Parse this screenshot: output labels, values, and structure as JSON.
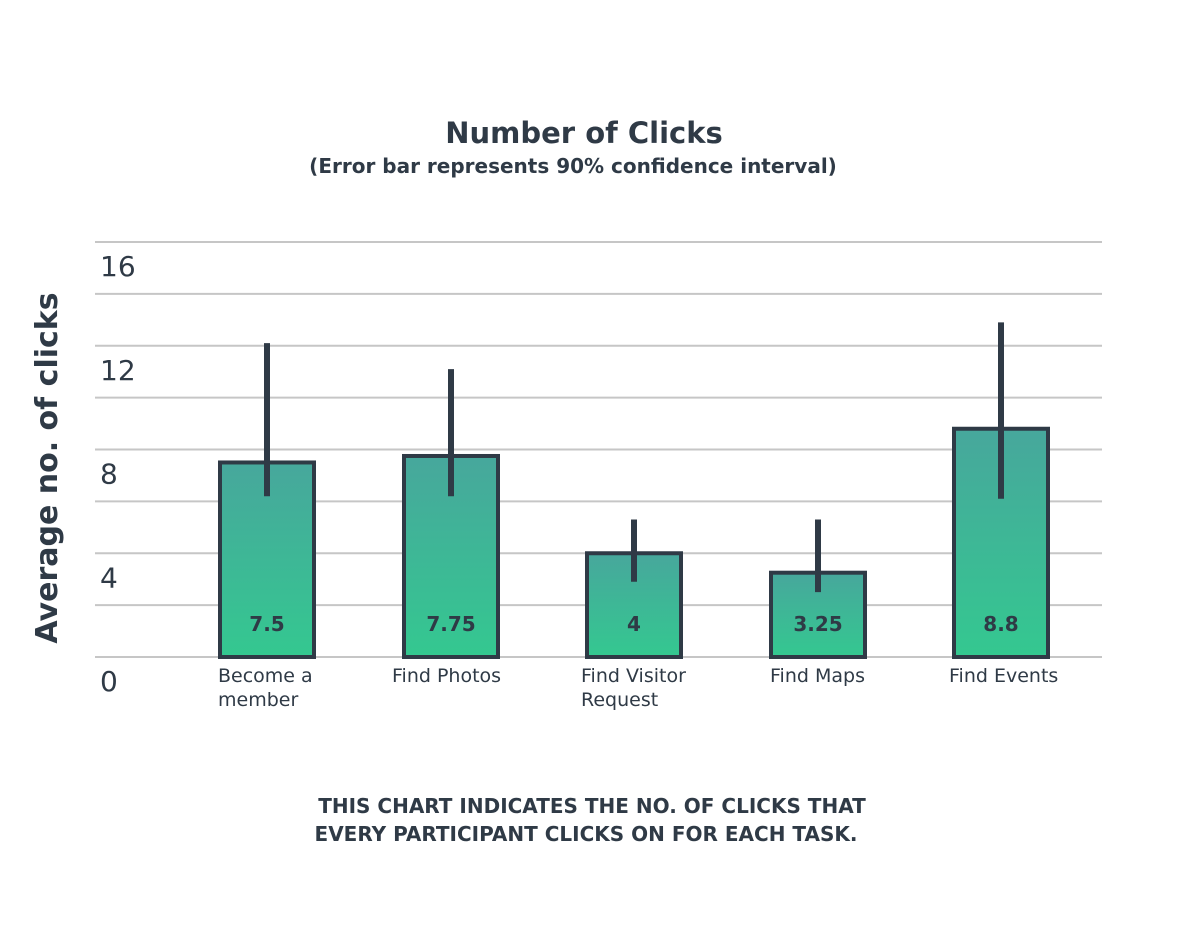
{
  "chart_data": {
    "type": "bar",
    "title": "Number of Clicks",
    "subtitle": "(Error bar represents 90% confidence interval)",
    "xlabel": "",
    "ylabel": "Average no. of clicks",
    "ylim": [
      0,
      16
    ],
    "yticks": [
      "0",
      "4",
      "8",
      "12",
      "16"
    ],
    "grid": true,
    "categories": [
      [
        "Become a",
        "member"
      ],
      [
        "Find Photos"
      ],
      [
        "Find Visitor",
        "Request"
      ],
      [
        "Find Maps"
      ],
      [
        "Find Events"
      ]
    ],
    "values": [
      7.5,
      7.75,
      4,
      3.25,
      8.8
    ],
    "value_labels": [
      "7.5",
      "7.75",
      "4",
      "3.25",
      "8.8"
    ],
    "error_bars": [
      {
        "low": 6.2,
        "high": 12.1
      },
      {
        "low": 6.2,
        "high": 11.1
      },
      {
        "low": 2.9,
        "high": 5.3
      },
      {
        "low": 2.5,
        "high": 5.3
      },
      {
        "low": 6.1,
        "high": 12.9
      }
    ],
    "colors": {
      "bar_top": "#47a79c",
      "bar_bottom": "#34c890",
      "bar_outline": "#2f3a46",
      "error_bar": "#2f3a46",
      "grid": "#c6c6c6",
      "text": "#2f3a46"
    },
    "footnote": [
      "THIS CHART INDICATES THE NO. OF CLICKS THAT",
      "EVERY PARTICIPANT CLICKS ON FOR EACH TASK."
    ]
  }
}
